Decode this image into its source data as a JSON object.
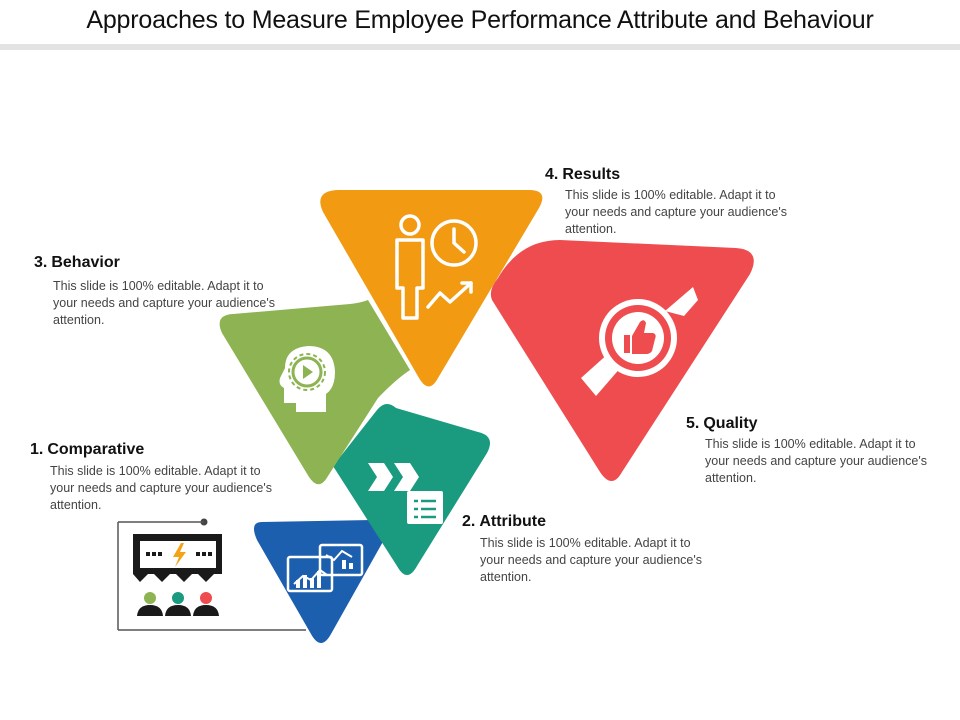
{
  "title": "Approaches to Measure Employee Performance Attribute and Behaviour",
  "colors": {
    "comparative": "#1c5fae",
    "attribute": "#1a9a7e",
    "behavior": "#8db352",
    "results": "#f19a12",
    "quality": "#ee4c4e"
  },
  "items": [
    {
      "number": "1.",
      "label": "Comparative",
      "description": "This slide is 100% editable. Adapt it to your needs and capture your audience's attention.",
      "icon": "charts-icon"
    },
    {
      "number": "2.",
      "label": "Attribute",
      "description": "This slide is 100% editable. Adapt it to your needs and capture your audience's attention.",
      "icon": "arrows-document-icon"
    },
    {
      "number": "3.",
      "label": "Behavior",
      "description": "This slide is 100% editable. Adapt it to your needs and capture your audience's attention.",
      "icon": "head-gear-icon"
    },
    {
      "number": "4.",
      "label": "Results",
      "description": "This slide is 100% editable. Adapt it to your needs and capture your audience's attention.",
      "icon": "person-clock-icon"
    },
    {
      "number": "5.",
      "label": "Quality",
      "description": "This slide is 100% editable. Adapt it to your needs and capture your audience's attention.",
      "icon": "thumbs-up-badge-icon"
    }
  ]
}
